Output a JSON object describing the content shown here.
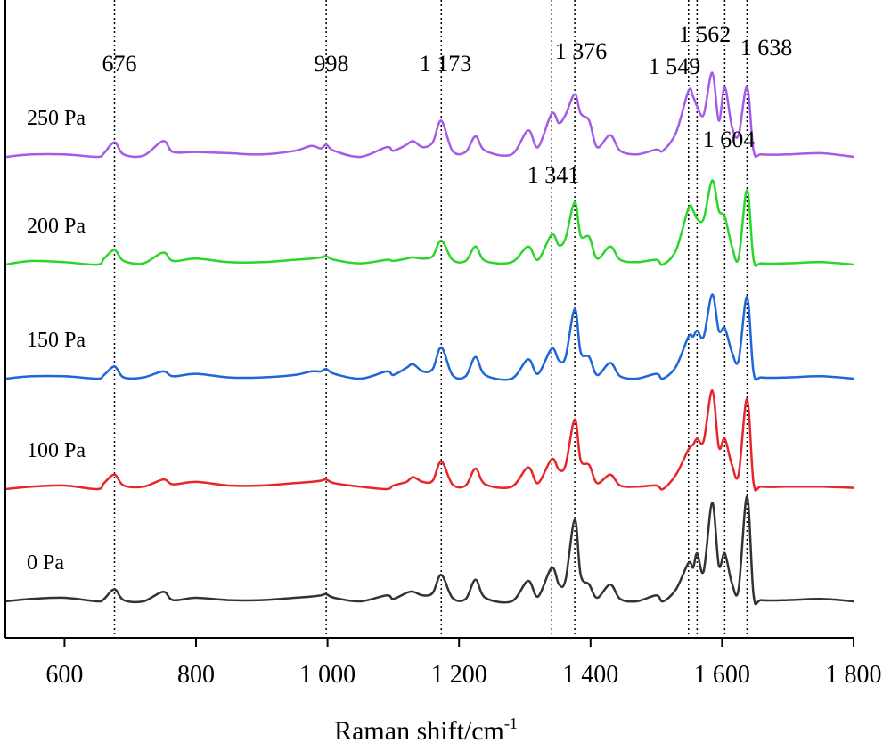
{
  "chart_data": {
    "type": "line",
    "title": "",
    "xlabel": "Raman shift/cm",
    "xlabel_sup": "-1",
    "ylabel": "",
    "xlim": [
      510,
      1800
    ],
    "x_ticks": [
      600,
      800,
      1000,
      1200,
      1400,
      1600,
      1800
    ],
    "x_tick_labels": [
      "600",
      "800",
      "1 000",
      "1 200",
      "1 400",
      "1 600",
      "1 800"
    ],
    "grid": false,
    "legend": "none",
    "peak_lines": [
      676,
      998,
      1173,
      1341,
      1376,
      1549,
      1562,
      1604,
      1638
    ],
    "peak_labels": [
      {
        "text": "676",
        "x": 676
      },
      {
        "text": "998",
        "x": 998
      },
      {
        "text": "1 173",
        "x": 1173
      },
      {
        "text": "1 376",
        "x": 1376
      },
      {
        "text": "1 549",
        "x": 1549
      },
      {
        "text": "1 562",
        "x": 1562
      },
      {
        "text": "1 638",
        "x": 1638
      },
      {
        "text": "1 604",
        "x": 1604
      },
      {
        "text": "1 341",
        "x": 1341
      }
    ],
    "x": [
      510,
      550,
      600,
      650,
      660,
      676,
      690,
      720,
      750,
      765,
      800,
      850,
      900,
      950,
      975,
      990,
      998,
      1010,
      1050,
      1090,
      1100,
      1120,
      1130,
      1145,
      1160,
      1173,
      1190,
      1210,
      1225,
      1240,
      1280,
      1305,
      1320,
      1341,
      1352,
      1362,
      1376,
      1385,
      1398,
      1410,
      1430,
      1445,
      1470,
      1500,
      1510,
      1530,
      1549,
      1556,
      1562,
      1572,
      1585,
      1595,
      1604,
      1615,
      1625,
      1638,
      1648,
      1660,
      1700,
      1750,
      1800
    ],
    "series": [
      {
        "name": "0 Pa",
        "color": "#333333",
        "values": [
          0.0,
          0.02,
          0.03,
          0.0,
          0.02,
          0.1,
          0.01,
          0.0,
          0.08,
          0.01,
          0.03,
          0.01,
          0.01,
          0.03,
          0.04,
          0.05,
          0.06,
          0.03,
          0.0,
          0.05,
          0.02,
          0.07,
          0.08,
          0.05,
          0.07,
          0.22,
          0.03,
          0.02,
          0.18,
          0.03,
          0.0,
          0.17,
          0.04,
          0.28,
          0.14,
          0.18,
          0.68,
          0.22,
          0.14,
          0.03,
          0.14,
          0.02,
          0.0,
          0.05,
          0.0,
          0.1,
          0.32,
          0.28,
          0.4,
          0.25,
          0.82,
          0.3,
          0.4,
          0.15,
          0.1,
          0.87,
          0.05,
          0.01,
          0.01,
          0.02,
          0.0
        ]
      },
      {
        "name": "100 Pa",
        "color": "#e8262a",
        "values": [
          0.0,
          0.02,
          0.03,
          0.0,
          0.05,
          0.12,
          0.03,
          0.02,
          0.08,
          0.04,
          0.06,
          0.03,
          0.03,
          0.05,
          0.06,
          0.07,
          0.08,
          0.05,
          0.02,
          0.0,
          0.03,
          0.06,
          0.1,
          0.06,
          0.07,
          0.23,
          0.04,
          0.03,
          0.17,
          0.04,
          0.02,
          0.18,
          0.05,
          0.25,
          0.16,
          0.2,
          0.58,
          0.24,
          0.2,
          0.05,
          0.12,
          0.03,
          0.02,
          0.03,
          0.0,
          0.12,
          0.33,
          0.37,
          0.42,
          0.4,
          0.82,
          0.35,
          0.42,
          0.2,
          0.12,
          0.75,
          0.05,
          0.02,
          0.02,
          0.02,
          0.01
        ]
      },
      {
        "name": "150 Pa",
        "color": "#1f66d6",
        "values": [
          0.0,
          0.02,
          0.02,
          0.0,
          0.03,
          0.1,
          0.01,
          0.01,
          0.06,
          0.02,
          0.04,
          0.01,
          0.01,
          0.03,
          0.06,
          0.06,
          0.08,
          0.04,
          0.0,
          0.06,
          0.03,
          0.09,
          0.12,
          0.06,
          0.08,
          0.26,
          0.03,
          0.02,
          0.18,
          0.03,
          0.0,
          0.16,
          0.04,
          0.25,
          0.15,
          0.18,
          0.58,
          0.22,
          0.18,
          0.03,
          0.13,
          0.02,
          0.0,
          0.04,
          0.0,
          0.1,
          0.35,
          0.35,
          0.4,
          0.35,
          0.7,
          0.4,
          0.42,
          0.22,
          0.15,
          0.68,
          0.05,
          0.01,
          0.01,
          0.02,
          0.0
        ]
      },
      {
        "name": "200 Pa",
        "color": "#2bd62b",
        "values": [
          0.0,
          0.03,
          0.02,
          0.0,
          0.05,
          0.12,
          0.03,
          0.01,
          0.1,
          0.03,
          0.05,
          0.02,
          0.02,
          0.04,
          0.05,
          0.06,
          0.07,
          0.04,
          0.01,
          0.04,
          0.03,
          0.05,
          0.06,
          0.05,
          0.07,
          0.2,
          0.04,
          0.03,
          0.15,
          0.03,
          0.02,
          0.15,
          0.04,
          0.25,
          0.16,
          0.22,
          0.52,
          0.24,
          0.23,
          0.05,
          0.15,
          0.04,
          0.02,
          0.04,
          0.0,
          0.12,
          0.47,
          0.45,
          0.38,
          0.38,
          0.7,
          0.45,
          0.4,
          0.15,
          0.05,
          0.62,
          0.04,
          0.01,
          0.01,
          0.02,
          0.0
        ]
      },
      {
        "name": "250 Pa",
        "color": "#a45be8",
        "values": [
          0.0,
          0.02,
          0.02,
          0.0,
          0.03,
          0.12,
          0.02,
          0.01,
          0.13,
          0.04,
          0.04,
          0.03,
          0.02,
          0.05,
          0.09,
          0.07,
          0.1,
          0.05,
          0.0,
          0.08,
          0.05,
          0.1,
          0.13,
          0.08,
          0.12,
          0.3,
          0.05,
          0.04,
          0.17,
          0.05,
          0.02,
          0.22,
          0.08,
          0.36,
          0.28,
          0.35,
          0.52,
          0.36,
          0.3,
          0.08,
          0.18,
          0.05,
          0.02,
          0.06,
          0.05,
          0.2,
          0.55,
          0.5,
          0.42,
          0.35,
          0.7,
          0.3,
          0.58,
          0.25,
          0.18,
          0.58,
          0.05,
          0.02,
          0.02,
          0.03,
          0.0
        ]
      }
    ]
  }
}
